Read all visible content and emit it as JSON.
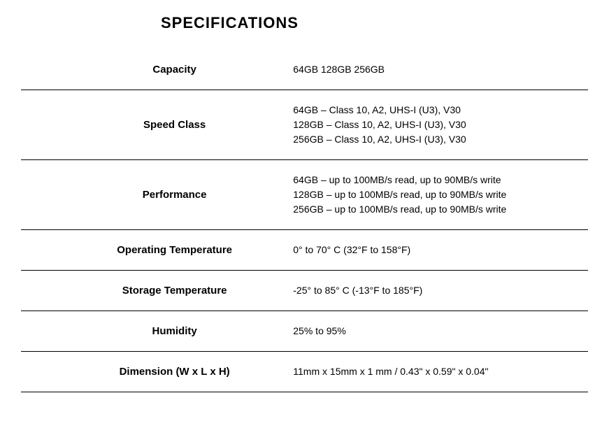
{
  "title": "SPECIFICATIONS",
  "rows": [
    {
      "label": "Capacity",
      "value": "64GB 128GB 256GB"
    },
    {
      "label": "Speed Class",
      "value": "64GB – Class 10, A2, UHS-I (U3), V30\n128GB – Class 10, A2, UHS-I (U3), V30\n256GB – Class 10, A2, UHS-I (U3), V30"
    },
    {
      "label": "Performance",
      "value": "64GB – up to 100MB/s read, up to 90MB/s write\n128GB – up to 100MB/s read, up to 90MB/s write\n256GB – up to 100MB/s read, up to 90MB/s write"
    },
    {
      "label": "Operating Temperature",
      "value": "0° to 70° C (32°F to 158°F)"
    },
    {
      "label": "Storage Temperature",
      "value": "-25° to 85° C (-13°F to 185°F)"
    },
    {
      "label": "Humidity",
      "value": "25% to 95%"
    },
    {
      "label": "Dimension (W x L x H)",
      "value": "11mm x 15mm x 1 mm / 0.43\" x 0.59\" x 0.04\""
    }
  ],
  "styling": {
    "title_fontsize": 22,
    "title_fontweight": "bold",
    "label_fontsize": 15,
    "label_fontweight": "bold",
    "value_fontsize": 14,
    "border_color": "#000000",
    "text_color": "#000000",
    "background_color": "#ffffff",
    "font_family": "Arial, Helvetica, sans-serif"
  }
}
